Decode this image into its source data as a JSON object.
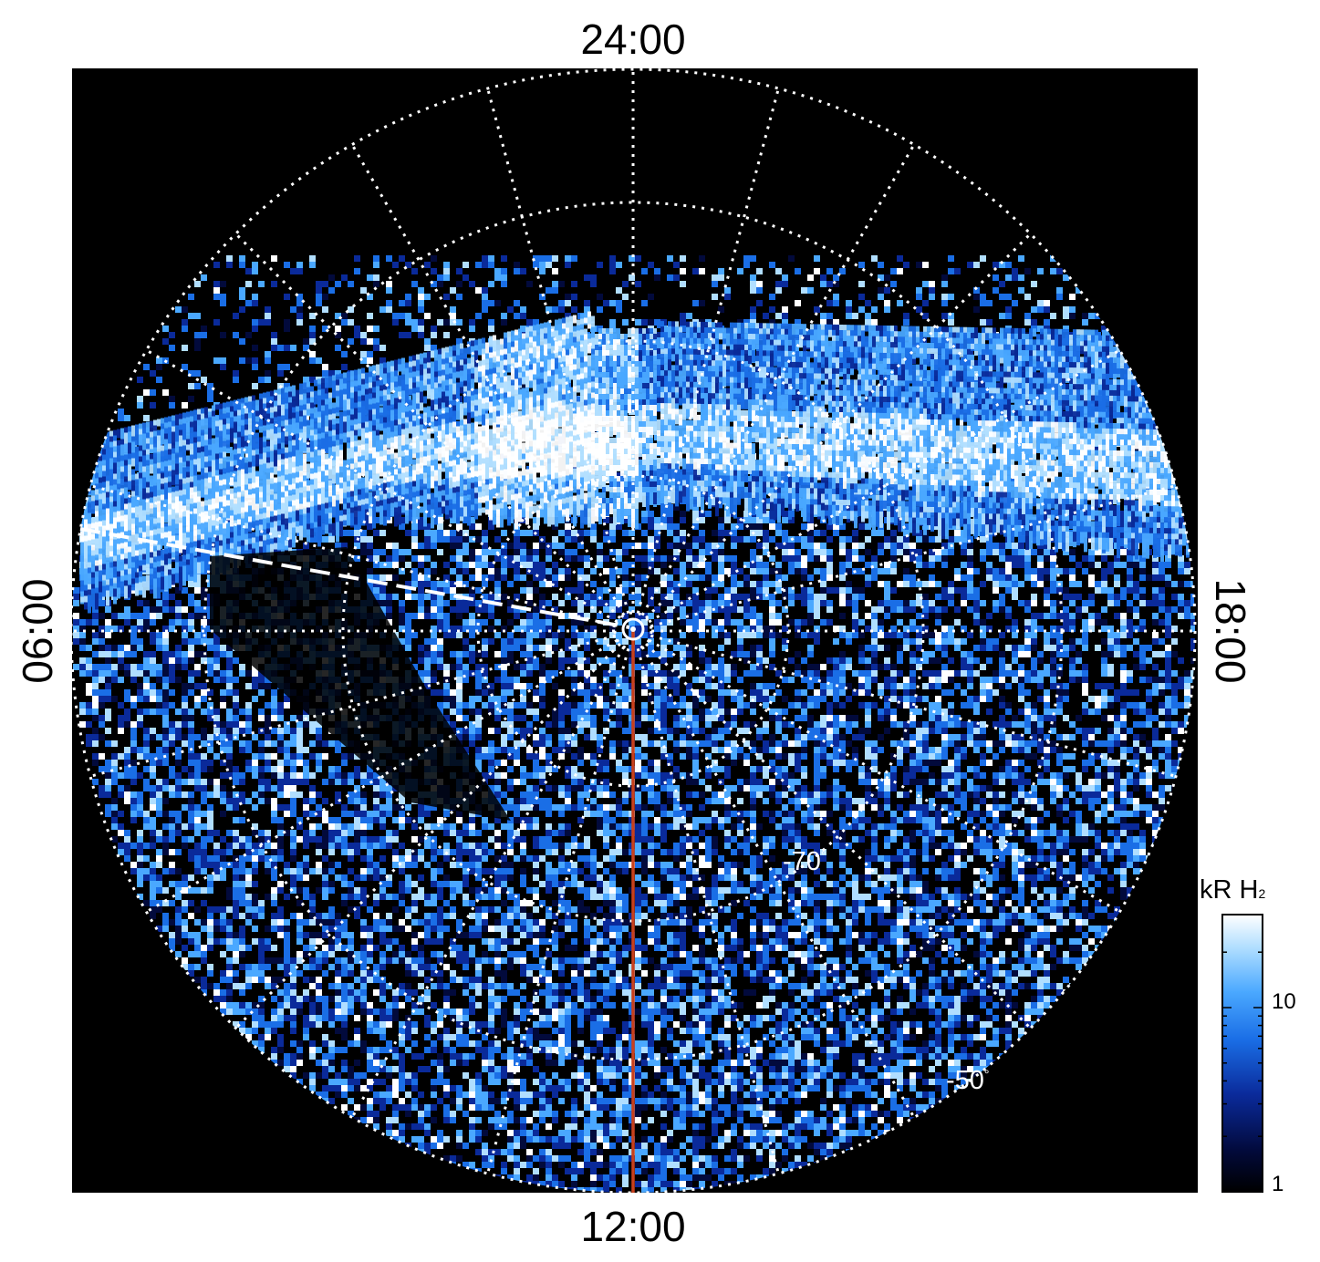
{
  "local_time_labels": {
    "top": "24:00",
    "bottom": "12:00",
    "left": "06:00",
    "right": "18:00"
  },
  "latitude_labels": {
    "inner": "-70",
    "outer": "-50",
    "degree_symbol": "°"
  },
  "colorbar": {
    "unit": "kR H",
    "unit_subscript": "2",
    "tick_labels": [
      "10",
      "1"
    ],
    "colors": [
      "#000000",
      "#020a3c",
      "#0a2a9a",
      "#1a6ee6",
      "#4aa8ff",
      "#b0deff",
      "#ffffff"
    ]
  },
  "colors": {
    "background": "#000000",
    "grid": "#ffffff",
    "marker_line": "#c8401c"
  }
}
